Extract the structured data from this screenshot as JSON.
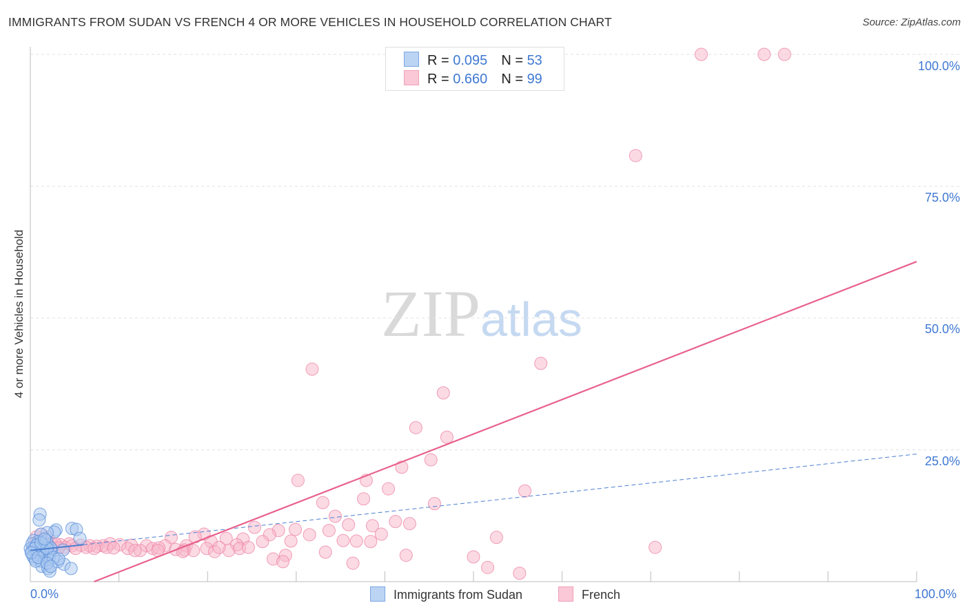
{
  "title": "IMMIGRANTS FROM SUDAN VS FRENCH 4 OR MORE VEHICLES IN HOUSEHOLD CORRELATION CHART",
  "source": "Source: ZipAtlas.com",
  "watermark": {
    "zip": "ZIP",
    "atlas": "atlas"
  },
  "legend": {
    "rows": [
      {
        "r_label": "R = ",
        "r_value": "0.095",
        "n_label": "N = ",
        "n_value": "53"
      },
      {
        "r_label": "R = ",
        "r_value": "0.660",
        "n_label": "N = ",
        "n_value": "99"
      }
    ]
  },
  "colors": {
    "blue_fill": "#a9c8f0",
    "blue_stroke": "#5a8fd8",
    "pink_fill": "#f7b6ca",
    "pink_stroke": "#ee86a6",
    "pink_line": "#e8608c",
    "blue_line": "#4a7fd0",
    "tick_text": "#3f78d2"
  },
  "chart_data": {
    "type": "scatter",
    "title": "IMMIGRANTS FROM SUDAN VS FRENCH 4 OR MORE VEHICLES IN HOUSEHOLD CORRELATION CHART",
    "xlabel": "",
    "ylabel": "4 or more Vehicles in Household",
    "xlim": [
      0,
      100
    ],
    "ylim": [
      0,
      100
    ],
    "x_tick_labels": [
      "0.0%",
      "100.0%"
    ],
    "y_ticks": [
      25,
      50,
      75,
      100
    ],
    "y_tick_labels": [
      "25.0%",
      "50.0%",
      "75.0%",
      "100.0%"
    ],
    "grid": true,
    "legend_placement": "bottom",
    "series": [
      {
        "name": "Immigrants from Sudan",
        "R": 0.095,
        "N": 53,
        "trend": {
          "intercept": 5.9,
          "slope": 0.183,
          "solid_until": 6
        },
        "points": [
          [
            1.1,
            12.8
          ],
          [
            1.0,
            11.7
          ],
          [
            4.7,
            10.1
          ],
          [
            5.2,
            9.9
          ],
          [
            2.9,
            9.8
          ],
          [
            2.7,
            9.4
          ],
          [
            1.9,
            9.3
          ],
          [
            1.2,
            9.0
          ],
          [
            5.6,
            8.2
          ],
          [
            0.4,
            7.8
          ],
          [
            0.9,
            7.6
          ],
          [
            1.4,
            7.2
          ],
          [
            2.0,
            7.0
          ],
          [
            0.3,
            6.4
          ],
          [
            0.6,
            5.9
          ],
          [
            1.1,
            6.3
          ],
          [
            1.7,
            5.7
          ],
          [
            2.4,
            6.0
          ],
          [
            3.7,
            6.0
          ],
          [
            0.2,
            5.5
          ],
          [
            0.8,
            5.2
          ],
          [
            1.5,
            4.8
          ],
          [
            2.2,
            5.1
          ],
          [
            0.5,
            4.3
          ],
          [
            1.2,
            3.9
          ],
          [
            2.1,
            4.2
          ],
          [
            3.1,
            3.8
          ],
          [
            3.8,
            3.3
          ],
          [
            1.3,
            2.9
          ],
          [
            2.0,
            2.5
          ],
          [
            2.2,
            2.0
          ],
          [
            4.6,
            2.5
          ],
          [
            0.9,
            6.5
          ],
          [
            1.6,
            6.8
          ],
          [
            0,
            6.3
          ],
          [
            0.2,
            7.2
          ],
          [
            0.7,
            6.9
          ],
          [
            1.8,
            7.8
          ],
          [
            2.3,
            6.4
          ],
          [
            1.0,
            5.6
          ],
          [
            1.4,
            6.0
          ],
          [
            1.9,
            6.3
          ],
          [
            0.5,
            6.3
          ],
          [
            1.2,
            7.4
          ],
          [
            1.6,
            8.1
          ],
          [
            0.3,
            4.8
          ],
          [
            0.6,
            3.9
          ],
          [
            2.6,
            4.6
          ],
          [
            3.2,
            4.3
          ],
          [
            0.1,
            5.5
          ],
          [
            0.9,
            4.6
          ],
          [
            1.9,
            3.5
          ],
          [
            2.3,
            2.9
          ]
        ]
      },
      {
        "name": "French",
        "R": 0.66,
        "N": 99,
        "trend": {
          "intercept": -4.7,
          "slope": 0.654
        },
        "points": [
          [
            75.7,
            100
          ],
          [
            82.8,
            100
          ],
          [
            85.1,
            100
          ],
          [
            68.3,
            80.8
          ],
          [
            57.6,
            41.4
          ],
          [
            31.8,
            40.3
          ],
          [
            46.6,
            35.8
          ],
          [
            43.5,
            29.2
          ],
          [
            47.0,
            27.4
          ],
          [
            45.2,
            23.1
          ],
          [
            41.9,
            21.7
          ],
          [
            30.2,
            19.2
          ],
          [
            37.9,
            19.2
          ],
          [
            40.4,
            17.6
          ],
          [
            37.6,
            15.7
          ],
          [
            33.0,
            15.0
          ],
          [
            55.8,
            17.2
          ],
          [
            45.6,
            14.8
          ],
          [
            34.4,
            12.4
          ],
          [
            41.2,
            11.4
          ],
          [
            42.8,
            11.0
          ],
          [
            35.9,
            10.8
          ],
          [
            38.6,
            10.6
          ],
          [
            25.3,
            10.3
          ],
          [
            28.0,
            9.7
          ],
          [
            29.9,
            9.9
          ],
          [
            33.7,
            9.7
          ],
          [
            39.6,
            9.0
          ],
          [
            52.6,
            8.4
          ],
          [
            70.5,
            6.5
          ],
          [
            31.5,
            8.9
          ],
          [
            27.0,
            8.9
          ],
          [
            19.6,
            9.0
          ],
          [
            18.6,
            8.5
          ],
          [
            15.9,
            8.4
          ],
          [
            24.0,
            8.1
          ],
          [
            26.2,
            7.6
          ],
          [
            22.1,
            8.2
          ],
          [
            35.3,
            7.8
          ],
          [
            36.8,
            7.7
          ],
          [
            38.4,
            7.6
          ],
          [
            29.4,
            7.7
          ],
          [
            20.4,
            7.6
          ],
          [
            23.3,
            7.0
          ],
          [
            17.6,
            6.8
          ],
          [
            15.2,
            6.8
          ],
          [
            13.1,
            6.8
          ],
          [
            11.4,
            6.9
          ],
          [
            10.1,
            7.0
          ],
          [
            9.0,
            7.2
          ],
          [
            8.2,
            6.8
          ],
          [
            7.5,
            6.7
          ],
          [
            6.7,
            6.8
          ],
          [
            5.7,
            6.9
          ],
          [
            4.4,
            7.2
          ],
          [
            3.4,
            7.0
          ],
          [
            2.4,
            7.3
          ],
          [
            1.5,
            7.6
          ],
          [
            0.9,
            7.7
          ],
          [
            0.7,
            8.5
          ],
          [
            1.2,
            9.0
          ],
          [
            2.0,
            8.4
          ],
          [
            2.8,
            7.2
          ],
          [
            3.9,
            6.5
          ],
          [
            4.7,
            6.8
          ],
          [
            6.3,
            6.5
          ],
          [
            7.2,
            6.3
          ],
          [
            8.6,
            6.5
          ],
          [
            9.4,
            6.4
          ],
          [
            11.0,
            6.3
          ],
          [
            12.4,
            5.9
          ],
          [
            13.8,
            6.3
          ],
          [
            14.5,
            6.4
          ],
          [
            16.4,
            6.1
          ],
          [
            17.4,
            6.0
          ],
          [
            18.4,
            5.9
          ],
          [
            19.9,
            6.3
          ],
          [
            20.8,
            5.7
          ],
          [
            22.4,
            5.9
          ],
          [
            21.3,
            6.5
          ],
          [
            23.6,
            6.3
          ],
          [
            24.6,
            6.5
          ],
          [
            33.3,
            5.6
          ],
          [
            42.4,
            5.0
          ],
          [
            50.0,
            4.7
          ],
          [
            27.4,
            4.3
          ],
          [
            28.8,
            5.0
          ],
          [
            28.5,
            3.8
          ],
          [
            36.4,
            3.5
          ],
          [
            51.6,
            2.7
          ],
          [
            55.2,
            1.6
          ],
          [
            1.7,
            5.9
          ],
          [
            0.9,
            6.5
          ],
          [
            0.4,
            6.9
          ],
          [
            3.2,
            6.4
          ],
          [
            5.1,
            6.3
          ],
          [
            11.8,
            5.9
          ],
          [
            14.4,
            5.9
          ],
          [
            17.2,
            5.7
          ]
        ]
      }
    ]
  }
}
